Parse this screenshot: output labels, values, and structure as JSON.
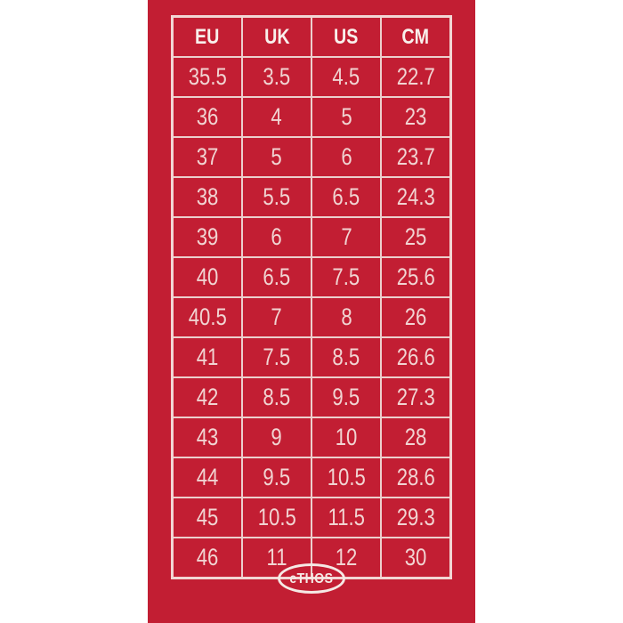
{
  "panel": {
    "background_color": "#c21e33",
    "outer_background_color": "#ffffff",
    "border_color": "#eccfcd",
    "header_text_color": "#f8f0ec",
    "cell_text_color": "#f1d4d2"
  },
  "logo": {
    "text": "eTHOS"
  },
  "chart_data": {
    "type": "table",
    "columns": [
      "EU",
      "UK",
      "US",
      "CM"
    ],
    "rows": [
      [
        35.5,
        3.5,
        4.5,
        22.7
      ],
      [
        36,
        4,
        5,
        23
      ],
      [
        37,
        5,
        6,
        23.7
      ],
      [
        38,
        5.5,
        6.5,
        24.3
      ],
      [
        39,
        6,
        7,
        25
      ],
      [
        40,
        6.5,
        7.5,
        25.6
      ],
      [
        40.5,
        7,
        8,
        26
      ],
      [
        41,
        7.5,
        8.5,
        26.6
      ],
      [
        42,
        8.5,
        9.5,
        27.3
      ],
      [
        43,
        9,
        10,
        28
      ],
      [
        44,
        9.5,
        10.5,
        28.6
      ],
      [
        45,
        10.5,
        11.5,
        29.3
      ],
      [
        46,
        11,
        12,
        30
      ]
    ]
  }
}
